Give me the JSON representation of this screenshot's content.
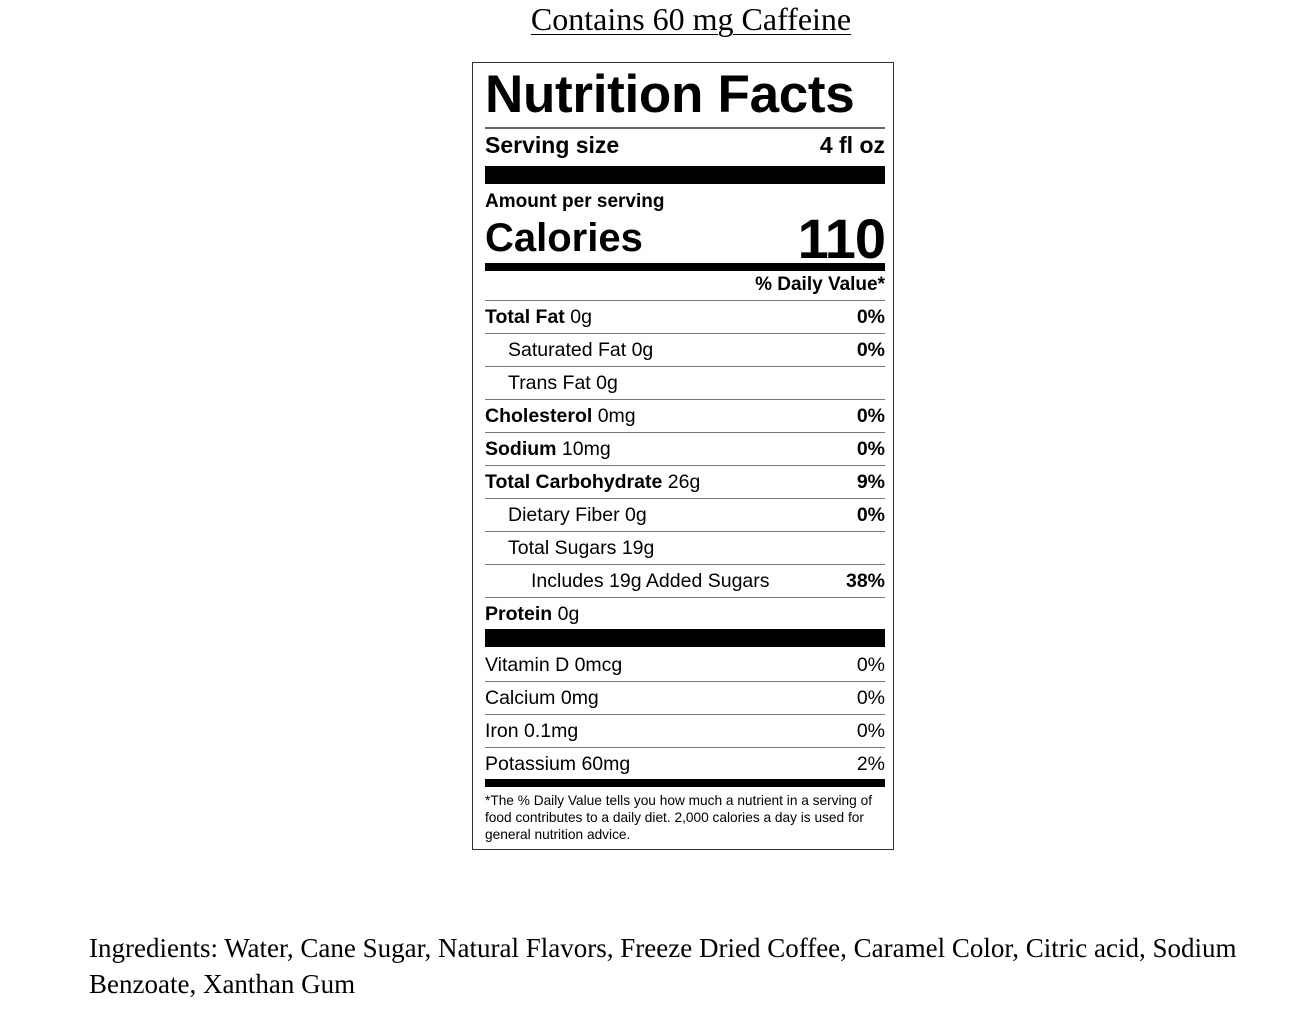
{
  "caffeine_note": "Contains 60 mg Caffeine",
  "label": {
    "title": "Nutrition Facts",
    "serving_size_label": "Serving size",
    "serving_size_value": "4 fl oz",
    "amount_per_serving": "Amount per serving",
    "calories_label": "Calories",
    "calories_value": "110",
    "daily_value_header": "% Daily Value*",
    "nutrients": [
      {
        "name": "Total Fat",
        "amount": "0g",
        "dv": "0%",
        "indent": 0
      },
      {
        "name": "Saturated Fat",
        "amount": "0g",
        "dv": "0%",
        "indent": 1
      },
      {
        "name": "Trans Fat",
        "amount": "0g",
        "dv": "",
        "indent": 1
      },
      {
        "name": "Cholesterol",
        "amount": "0mg",
        "dv": "0%",
        "indent": 0
      },
      {
        "name": "Sodium",
        "amount": "10mg",
        "dv": "0%",
        "indent": 0
      },
      {
        "name": "Total Carbohydrate",
        "amount": "26g",
        "dv": "9%",
        "indent": 0
      },
      {
        "name": "Dietary Fiber",
        "amount": "0g",
        "dv": "0%",
        "indent": 1
      },
      {
        "name": "Total Sugars",
        "amount": "19g",
        "dv": "",
        "indent": 1
      },
      {
        "name": "Includes 19g Added Sugars",
        "amount": "",
        "dv": "38%",
        "indent": 2
      },
      {
        "name": "Protein",
        "amount": "0g",
        "dv": "",
        "indent": 0
      }
    ],
    "vitamins": [
      {
        "name": "Vitamin D 0mcg",
        "dv": "0%"
      },
      {
        "name": "Calcium 0mg",
        "dv": "0%"
      },
      {
        "name": "Iron 0.1mg",
        "dv": "0%"
      },
      {
        "name": "Potassium 60mg",
        "dv": "2%"
      }
    ],
    "footnote": "*The % Daily Value tells you how much a nutrient in a serving of food contributes to a daily diet. 2,000 calories a day is used for general nutrition advice."
  },
  "ingredients": "Ingredients: Water, Cane Sugar, Natural Flavors, Freeze Dried Coffee, Caramel Color, Citric acid, Sodium Benzoate, Xanthan Gum"
}
